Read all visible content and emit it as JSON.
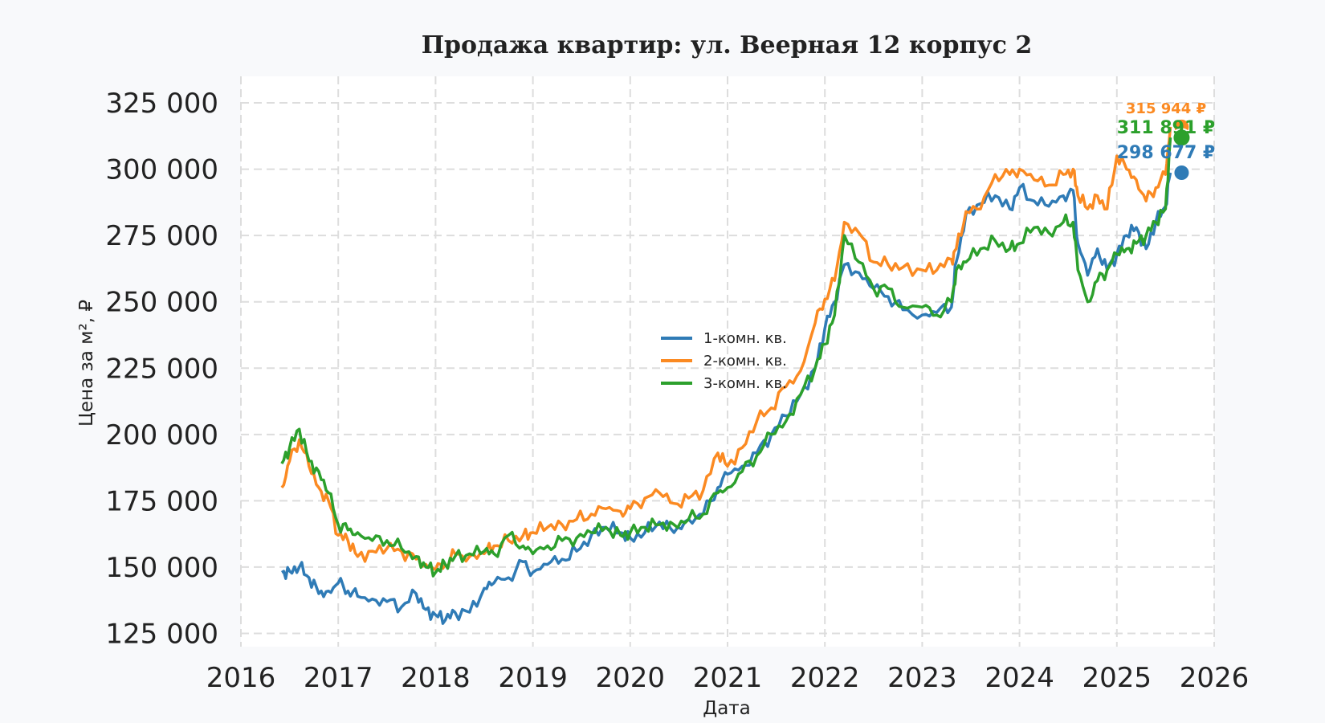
{
  "colors": {
    "background": "#f8f9fb",
    "plot_background": "#ffffff",
    "grid": "#dddddd",
    "series1": "#2f7bb6",
    "series2": "#fb8a22",
    "series3": "#2ca02c"
  },
  "chart_data": {
    "type": "line",
    "title": "Продажа квартир: ул. Веерная 12 корпус 2",
    "xlabel": "Дата",
    "ylabel": "Цена за м², ₽",
    "xlim": [
      2016.0,
      2026.0
    ],
    "ylim": [
      120000,
      335000
    ],
    "x_ticks": [
      2016,
      2017,
      2018,
      2019,
      2020,
      2021,
      2022,
      2023,
      2024,
      2025,
      2026
    ],
    "x_tick_labels": [
      "2016",
      "2017",
      "2018",
      "2019",
      "2020",
      "2021",
      "2022",
      "2023",
      "2024",
      "2025",
      "2026"
    ],
    "y_ticks": [
      125000,
      150000,
      175000,
      200000,
      225000,
      250000,
      275000,
      300000,
      325000
    ],
    "y_tick_labels": [
      "125 000",
      "150 000",
      "175 000",
      "200 000",
      "225 000",
      "250 000",
      "275 000",
      "300 000",
      "325 000"
    ],
    "grid": true,
    "grid_style": "dashed",
    "legend_position": "center",
    "series": [
      {
        "name": "1-комн. кв.",
        "color": "#2f7bb6",
        "end_label": "298 677 ₽",
        "end_value": 298677,
        "x": [
          2016.42,
          2016.5,
          2016.6,
          2016.7,
          2016.8,
          2016.9,
          2017.0,
          2017.1,
          2017.2,
          2017.35,
          2017.5,
          2017.65,
          2017.8,
          2017.9,
          2018.0,
          2018.1,
          2018.2,
          2018.35,
          2018.5,
          2018.6,
          2018.75,
          2018.9,
          2019.0,
          2019.15,
          2019.3,
          2019.45,
          2019.6,
          2019.75,
          2019.9,
          2020.0,
          2020.15,
          2020.3,
          2020.45,
          2020.6,
          2020.75,
          2020.9,
          2021.0,
          2021.15,
          2021.3,
          2021.45,
          2021.6,
          2021.75,
          2021.9,
          2022.0,
          2022.1,
          2022.2,
          2022.35,
          2022.5,
          2022.65,
          2022.8,
          2023.0,
          2023.15,
          2023.3,
          2023.35,
          2023.45,
          2023.6,
          2023.75,
          2023.9,
          2024.0,
          2024.15,
          2024.3,
          2024.45,
          2024.55,
          2024.6,
          2024.7,
          2024.8,
          2024.9,
          2025.0,
          2025.1,
          2025.2,
          2025.3,
          2025.4,
          2025.5,
          2025.55
        ],
        "y": [
          148000,
          148500,
          150000,
          146000,
          140000,
          141000,
          144000,
          141000,
          139000,
          138000,
          137000,
          135000,
          140000,
          134000,
          132000,
          130000,
          133000,
          133000,
          142000,
          144000,
          146000,
          152000,
          148000,
          151000,
          153000,
          156000,
          162000,
          165000,
          163000,
          161000,
          163000,
          167000,
          163000,
          168000,
          170000,
          180000,
          185000,
          188000,
          193000,
          200000,
          207000,
          215000,
          225000,
          240000,
          250000,
          264000,
          261000,
          255000,
          252000,
          247000,
          245000,
          246000,
          248000,
          265000,
          283000,
          287000,
          290000,
          285000,
          293000,
          288000,
          286000,
          290000,
          292000,
          272000,
          260000,
          270000,
          262000,
          268000,
          275000,
          278000,
          270000,
          280000,
          286000,
          298677
        ]
      },
      {
        "name": "2-комн. кв.",
        "color": "#fb8a22",
        "end_label": "315 944 ₽",
        "end_value": 315944,
        "x": [
          2016.42,
          2016.5,
          2016.6,
          2016.7,
          2016.8,
          2016.9,
          2017.0,
          2017.1,
          2017.2,
          2017.35,
          2017.5,
          2017.65,
          2017.8,
          2017.9,
          2018.0,
          2018.1,
          2018.2,
          2018.35,
          2018.5,
          2018.6,
          2018.75,
          2018.9,
          2019.0,
          2019.15,
          2019.3,
          2019.45,
          2019.6,
          2019.75,
          2019.9,
          2020.0,
          2020.15,
          2020.3,
          2020.45,
          2020.6,
          2020.75,
          2020.9,
          2021.0,
          2021.15,
          2021.3,
          2021.45,
          2021.6,
          2021.75,
          2021.9,
          2022.0,
          2022.1,
          2022.2,
          2022.35,
          2022.5,
          2022.65,
          2022.8,
          2023.0,
          2023.15,
          2023.3,
          2023.35,
          2023.45,
          2023.6,
          2023.75,
          2023.9,
          2024.0,
          2024.15,
          2024.3,
          2024.45,
          2024.55,
          2024.6,
          2024.7,
          2024.8,
          2024.9,
          2025.0,
          2025.1,
          2025.2,
          2025.3,
          2025.4,
          2025.5,
          2025.55
        ],
        "y": [
          180000,
          190000,
          198000,
          188000,
          180000,
          175000,
          162000,
          160000,
          154000,
          156000,
          157000,
          156000,
          153000,
          151000,
          149000,
          151000,
          155000,
          154000,
          155000,
          158000,
          160000,
          162000,
          163000,
          165000,
          166000,
          168000,
          170000,
          172000,
          171000,
          172000,
          176000,
          178000,
          174000,
          176000,
          179000,
          193000,
          188000,
          195000,
          205000,
          210000,
          218000,
          224000,
          242000,
          251000,
          258000,
          280000,
          276000,
          265000,
          264000,
          263000,
          262000,
          262000,
          266000,
          270000,
          284000,
          285000,
          298000,
          298000,
          300000,
          296000,
          294000,
          298000,
          300000,
          290000,
          285000,
          290000,
          285000,
          305000,
          300000,
          296000,
          288000,
          293000,
          298000,
          315944
        ]
      },
      {
        "name": "3-комн. кв.",
        "color": "#2ca02c",
        "end_label": "311 891 ₽",
        "end_value": 311891,
        "x": [
          2016.42,
          2016.5,
          2016.6,
          2016.7,
          2016.8,
          2016.9,
          2017.0,
          2017.1,
          2017.2,
          2017.35,
          2017.5,
          2017.65,
          2017.8,
          2017.9,
          2018.0,
          2018.1,
          2018.2,
          2018.35,
          2018.5,
          2018.6,
          2018.75,
          2018.9,
          2019.0,
          2019.15,
          2019.3,
          2019.45,
          2019.6,
          2019.75,
          2019.9,
          2020.0,
          2020.15,
          2020.3,
          2020.45,
          2020.6,
          2020.75,
          2020.9,
          2021.0,
          2021.15,
          2021.3,
          2021.45,
          2021.6,
          2021.75,
          2021.9,
          2022.0,
          2022.1,
          2022.2,
          2022.35,
          2022.5,
          2022.65,
          2022.8,
          2023.0,
          2023.15,
          2023.3,
          2023.35,
          2023.45,
          2023.6,
          2023.75,
          2023.9,
          2024.0,
          2024.15,
          2024.3,
          2024.45,
          2024.55,
          2024.6,
          2024.7,
          2024.8,
          2024.9,
          2025.0,
          2025.1,
          2025.2,
          2025.3,
          2025.4,
          2025.5,
          2025.55
        ],
        "y": [
          189000,
          195000,
          202000,
          190000,
          186000,
          178000,
          166000,
          164000,
          163000,
          160000,
          160000,
          157000,
          154000,
          150000,
          148000,
          151000,
          154000,
          155000,
          156000,
          155000,
          162000,
          158000,
          155000,
          158000,
          160000,
          161000,
          163000,
          165000,
          162000,
          163000,
          165000,
          166000,
          166000,
          168000,
          170000,
          178000,
          180000,
          186000,
          192000,
          200000,
          205000,
          215000,
          225000,
          234000,
          245000,
          275000,
          265000,
          255000,
          255000,
          248000,
          248000,
          245000,
          250000,
          262000,
          265000,
          270000,
          273000,
          270000,
          272000,
          278000,
          276000,
          280000,
          280000,
          262000,
          250000,
          258000,
          262000,
          268000,
          270000,
          272000,
          275000,
          280000,
          285000,
          311891
        ]
      }
    ]
  }
}
